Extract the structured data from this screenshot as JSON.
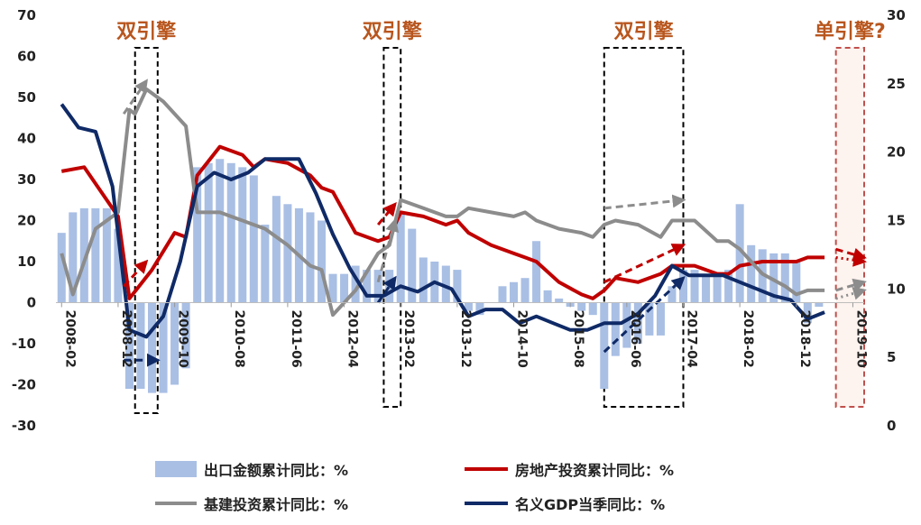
{
  "chart_data": {
    "type": "bar+line",
    "left_axis": {
      "ylim": [
        -30,
        70
      ],
      "ticks": [
        -30,
        -20,
        -10,
        0,
        10,
        20,
        30,
        40,
        50,
        60,
        70
      ]
    },
    "right_axis": {
      "ylim": [
        0,
        30
      ],
      "ticks": [
        0,
        5,
        10,
        15,
        20,
        25,
        30
      ]
    },
    "x_ticks": [
      "2008-02",
      "2008-12",
      "2009-10",
      "2010-08",
      "2011-06",
      "2012-04",
      "2013-02",
      "2013-12",
      "2014-10",
      "2015-08",
      "2016-06",
      "2017-04",
      "2018-02",
      "2018-12",
      "2019-10"
    ],
    "annotations": [
      {
        "text": "双引擎",
        "start": "2009-03",
        "end": "2009-07",
        "color": "#000000"
      },
      {
        "text": "双引擎",
        "start": "2012-11",
        "end": "2013-02",
        "color": "#000000"
      },
      {
        "text": "双引擎",
        "start": "2016-02",
        "end": "2017-04",
        "color": "#000000"
      },
      {
        "text": "单引擎?",
        "start": "2019-07",
        "end": "2019-12",
        "color": "#c0504d"
      }
    ],
    "series": [
      {
        "name": "出口金额累计同比：%",
        "kind": "bar",
        "axis": "left",
        "color": "#a9bfe4",
        "points": [
          [
            "2008-02",
            17
          ],
          [
            "2008-04",
            22
          ],
          [
            "2008-06",
            23
          ],
          [
            "2008-08",
            23
          ],
          [
            "2008-10",
            23
          ],
          [
            "2008-12",
            18
          ],
          [
            "2009-02",
            -21
          ],
          [
            "2009-04",
            -21
          ],
          [
            "2009-06",
            -22
          ],
          [
            "2009-08",
            -22
          ],
          [
            "2009-10",
            -20
          ],
          [
            "2009-12",
            -16
          ],
          [
            "2010-02",
            33
          ],
          [
            "2010-04",
            34
          ],
          [
            "2010-06",
            35
          ],
          [
            "2010-08",
            34
          ],
          [
            "2010-10",
            33
          ],
          [
            "2010-12",
            31
          ],
          [
            "2011-02",
            19
          ],
          [
            "2011-04",
            26
          ],
          [
            "2011-06",
            24
          ],
          [
            "2011-08",
            23
          ],
          [
            "2011-10",
            22
          ],
          [
            "2011-12",
            20
          ],
          [
            "2012-02",
            7
          ],
          [
            "2012-04",
            7
          ],
          [
            "2012-06",
            9
          ],
          [
            "2012-08",
            8
          ],
          [
            "2012-10",
            8
          ],
          [
            "2012-12",
            8
          ],
          [
            "2013-02",
            22
          ],
          [
            "2013-04",
            18
          ],
          [
            "2013-06",
            11
          ],
          [
            "2013-08",
            10
          ],
          [
            "2013-10",
            9
          ],
          [
            "2013-12",
            8
          ],
          [
            "2014-02",
            -2
          ],
          [
            "2014-04",
            -3
          ],
          [
            "2014-06",
            0
          ],
          [
            "2014-08",
            4
          ],
          [
            "2014-10",
            5
          ],
          [
            "2014-12",
            6
          ],
          [
            "2015-02",
            15
          ],
          [
            "2015-04",
            3
          ],
          [
            "2015-06",
            1
          ],
          [
            "2015-08",
            -1
          ],
          [
            "2015-10",
            -2
          ],
          [
            "2015-12",
            -3
          ],
          [
            "2016-02",
            -21
          ],
          [
            "2016-04",
            -13
          ],
          [
            "2016-06",
            -11
          ],
          [
            "2016-08",
            -10
          ],
          [
            "2016-10",
            -8
          ],
          [
            "2016-12",
            -8
          ],
          [
            "2017-02",
            4
          ],
          [
            "2017-04",
            8
          ],
          [
            "2017-06",
            8
          ],
          [
            "2017-08",
            7
          ],
          [
            "2017-10",
            7
          ],
          [
            "2017-12",
            8
          ],
          [
            "2018-02",
            24
          ],
          [
            "2018-04",
            14
          ],
          [
            "2018-06",
            13
          ],
          [
            "2018-08",
            12
          ],
          [
            "2018-10",
            12
          ],
          [
            "2018-12",
            10
          ],
          [
            "2019-02",
            -5
          ],
          [
            "2019-04",
            -1
          ]
        ]
      },
      {
        "name": "房地产投资累计同比：%",
        "kind": "line",
        "axis": "left",
        "color": "#c00000",
        "points": [
          [
            "2008-02",
            32
          ],
          [
            "2008-06",
            33
          ],
          [
            "2008-10",
            25
          ],
          [
            "2008-12",
            21
          ],
          [
            "2009-02",
            1
          ],
          [
            "2009-06",
            8
          ],
          [
            "2009-10",
            17
          ],
          [
            "2009-12",
            16
          ],
          [
            "2010-02",
            31
          ],
          [
            "2010-06",
            38
          ],
          [
            "2010-10",
            36
          ],
          [
            "2010-12",
            33
          ],
          [
            "2011-02",
            35
          ],
          [
            "2011-06",
            34
          ],
          [
            "2011-10",
            31
          ],
          [
            "2011-12",
            28
          ],
          [
            "2012-02",
            27
          ],
          [
            "2012-06",
            17
          ],
          [
            "2012-10",
            15
          ],
          [
            "2012-12",
            16
          ],
          [
            "2013-02",
            22
          ],
          [
            "2013-06",
            21
          ],
          [
            "2013-10",
            19
          ],
          [
            "2013-12",
            20
          ],
          [
            "2014-02",
            17
          ],
          [
            "2014-06",
            14
          ],
          [
            "2014-10",
            12
          ],
          [
            "2014-12",
            11
          ],
          [
            "2015-02",
            10
          ],
          [
            "2015-06",
            5
          ],
          [
            "2015-10",
            2
          ],
          [
            "2015-12",
            1
          ],
          [
            "2016-02",
            3
          ],
          [
            "2016-04",
            6
          ],
          [
            "2016-08",
            5
          ],
          [
            "2016-12",
            7
          ],
          [
            "2017-02",
            9
          ],
          [
            "2017-06",
            9
          ],
          [
            "2017-10",
            7
          ],
          [
            "2017-12",
            7
          ],
          [
            "2018-02",
            9
          ],
          [
            "2018-06",
            10
          ],
          [
            "2018-10",
            10
          ],
          [
            "2018-12",
            10
          ],
          [
            "2019-02",
            11
          ],
          [
            "2019-05",
            11
          ]
        ]
      },
      {
        "name": "基建投资累计同比：%",
        "kind": "line",
        "axis": "left",
        "color": "#8c8c8c",
        "points": [
          [
            "2008-02",
            12
          ],
          [
            "2008-04",
            2
          ],
          [
            "2008-08",
            18
          ],
          [
            "2008-12",
            22
          ],
          [
            "2009-02",
            47
          ],
          [
            "2009-03",
            46
          ],
          [
            "2009-05",
            52
          ],
          [
            "2009-08",
            49
          ],
          [
            "2009-12",
            43
          ],
          [
            "2010-02",
            22
          ],
          [
            "2010-06",
            22
          ],
          [
            "2010-10",
            20
          ],
          [
            "2010-12",
            19
          ],
          [
            "2011-02",
            18
          ],
          [
            "2011-06",
            14
          ],
          [
            "2011-10",
            9
          ],
          [
            "2011-12",
            8
          ],
          [
            "2012-02",
            -3
          ],
          [
            "2012-06",
            3
          ],
          [
            "2012-10",
            12
          ],
          [
            "2012-12",
            14
          ],
          [
            "2013-02",
            25
          ],
          [
            "2013-06",
            23
          ],
          [
            "2013-10",
            21
          ],
          [
            "2013-12",
            21
          ],
          [
            "2014-02",
            23
          ],
          [
            "2014-06",
            22
          ],
          [
            "2014-10",
            21
          ],
          [
            "2014-12",
            22
          ],
          [
            "2015-02",
            20
          ],
          [
            "2015-06",
            18
          ],
          [
            "2015-10",
            17
          ],
          [
            "2015-12",
            16
          ],
          [
            "2016-02",
            19
          ],
          [
            "2016-04",
            20
          ],
          [
            "2016-08",
            19
          ],
          [
            "2016-12",
            16
          ],
          [
            "2017-02",
            20
          ],
          [
            "2017-06",
            20
          ],
          [
            "2017-10",
            15
          ],
          [
            "2017-12",
            15
          ],
          [
            "2018-02",
            13
          ],
          [
            "2018-06",
            7
          ],
          [
            "2018-10",
            4
          ],
          [
            "2018-12",
            2
          ],
          [
            "2019-02",
            3
          ],
          [
            "2019-05",
            3
          ]
        ]
      },
      {
        "name": "名义GDP当季同比：%",
        "kind": "line",
        "axis": "right",
        "color": "#0f2a66",
        "points": [
          [
            "2008-02",
            23.5
          ],
          [
            "2008-05",
            21.8
          ],
          [
            "2008-08",
            21.5
          ],
          [
            "2008-11",
            17.5
          ],
          [
            "2009-02",
            7
          ],
          [
            "2009-05",
            6.5
          ],
          [
            "2009-08",
            8
          ],
          [
            "2009-11",
            12
          ],
          [
            "2010-02",
            17.5
          ],
          [
            "2010-05",
            18.5
          ],
          [
            "2010-08",
            18
          ],
          [
            "2010-11",
            18.5
          ],
          [
            "2011-02",
            19.5
          ],
          [
            "2011-05",
            19.5
          ],
          [
            "2011-08",
            19.5
          ],
          [
            "2011-11",
            17
          ],
          [
            "2012-02",
            14
          ],
          [
            "2012-05",
            11.5
          ],
          [
            "2012-08",
            9.5
          ],
          [
            "2012-11",
            9.5
          ],
          [
            "2013-02",
            10.2
          ],
          [
            "2013-05",
            9.8
          ],
          [
            "2013-08",
            10.5
          ],
          [
            "2013-11",
            10
          ],
          [
            "2014-02",
            8
          ],
          [
            "2014-05",
            8.5
          ],
          [
            "2014-08",
            8.5
          ],
          [
            "2014-11",
            7.5
          ],
          [
            "2015-02",
            8
          ],
          [
            "2015-05",
            7.5
          ],
          [
            "2015-08",
            7
          ],
          [
            "2015-11",
            7
          ],
          [
            "2016-02",
            7.5
          ],
          [
            "2016-05",
            7.5
          ],
          [
            "2016-08",
            8.2
          ],
          [
            "2016-11",
            9.5
          ],
          [
            "2017-02",
            11.7
          ],
          [
            "2017-05",
            11
          ],
          [
            "2017-08",
            11
          ],
          [
            "2017-11",
            11
          ],
          [
            "2018-02",
            10.5
          ],
          [
            "2018-05",
            10
          ],
          [
            "2018-08",
            9.5
          ],
          [
            "2018-11",
            9.2
          ],
          [
            "2019-02",
            7.8
          ],
          [
            "2019-05",
            8.3
          ]
        ]
      }
    ],
    "arrows": [
      {
        "color": "#8c8c8c",
        "from": [
          "2009-01",
          46
        ],
        "to": [
          "2009-05",
          54
        ]
      },
      {
        "color": "#c00000",
        "from": [
          "2009-01",
          4
        ],
        "to": [
          "2009-05",
          10
        ]
      },
      {
        "color": "#0f2a66",
        "from": [
          "2009-01",
          -14
        ],
        "to": [
          "2009-07",
          -14
        ]
      },
      {
        "color": "#8c8c8c",
        "from": [
          "2012-10",
          5
        ],
        "to": [
          "2013-01",
          20
        ]
      },
      {
        "color": "#c00000",
        "from": [
          "2012-10",
          19
        ],
        "to": [
          "2013-01",
          24
        ]
      },
      {
        "color": "#0f2a66",
        "from": [
          "2012-10",
          0
        ],
        "to": [
          "2013-01",
          6
        ]
      },
      {
        "color": "#8c8c8c",
        "from": [
          "2016-02",
          23
        ],
        "to": [
          "2017-04",
          25
        ]
      },
      {
        "color": "#c00000",
        "from": [
          "2016-02",
          5
        ],
        "to": [
          "2017-04",
          14
        ]
      },
      {
        "color": "#0f2a66",
        "from": [
          "2016-02",
          -12
        ],
        "to": [
          "2017-04",
          6
        ]
      },
      {
        "color": "#c00000",
        "from": [
          "2019-07",
          13
        ],
        "to": [
          "2019-12",
          11
        ]
      },
      {
        "color": "#c00000",
        "from": [
          "2019-07",
          11
        ],
        "to": [
          "2019-12",
          10
        ],
        "style": "dotted"
      },
      {
        "color": "#8c8c8c",
        "from": [
          "2019-07",
          3
        ],
        "to": [
          "2019-12",
          5
        ]
      },
      {
        "color": "#8c8c8c",
        "from": [
          "2019-07",
          1
        ],
        "to": [
          "2019-12",
          3
        ],
        "style": "dotted"
      }
    ]
  }
}
